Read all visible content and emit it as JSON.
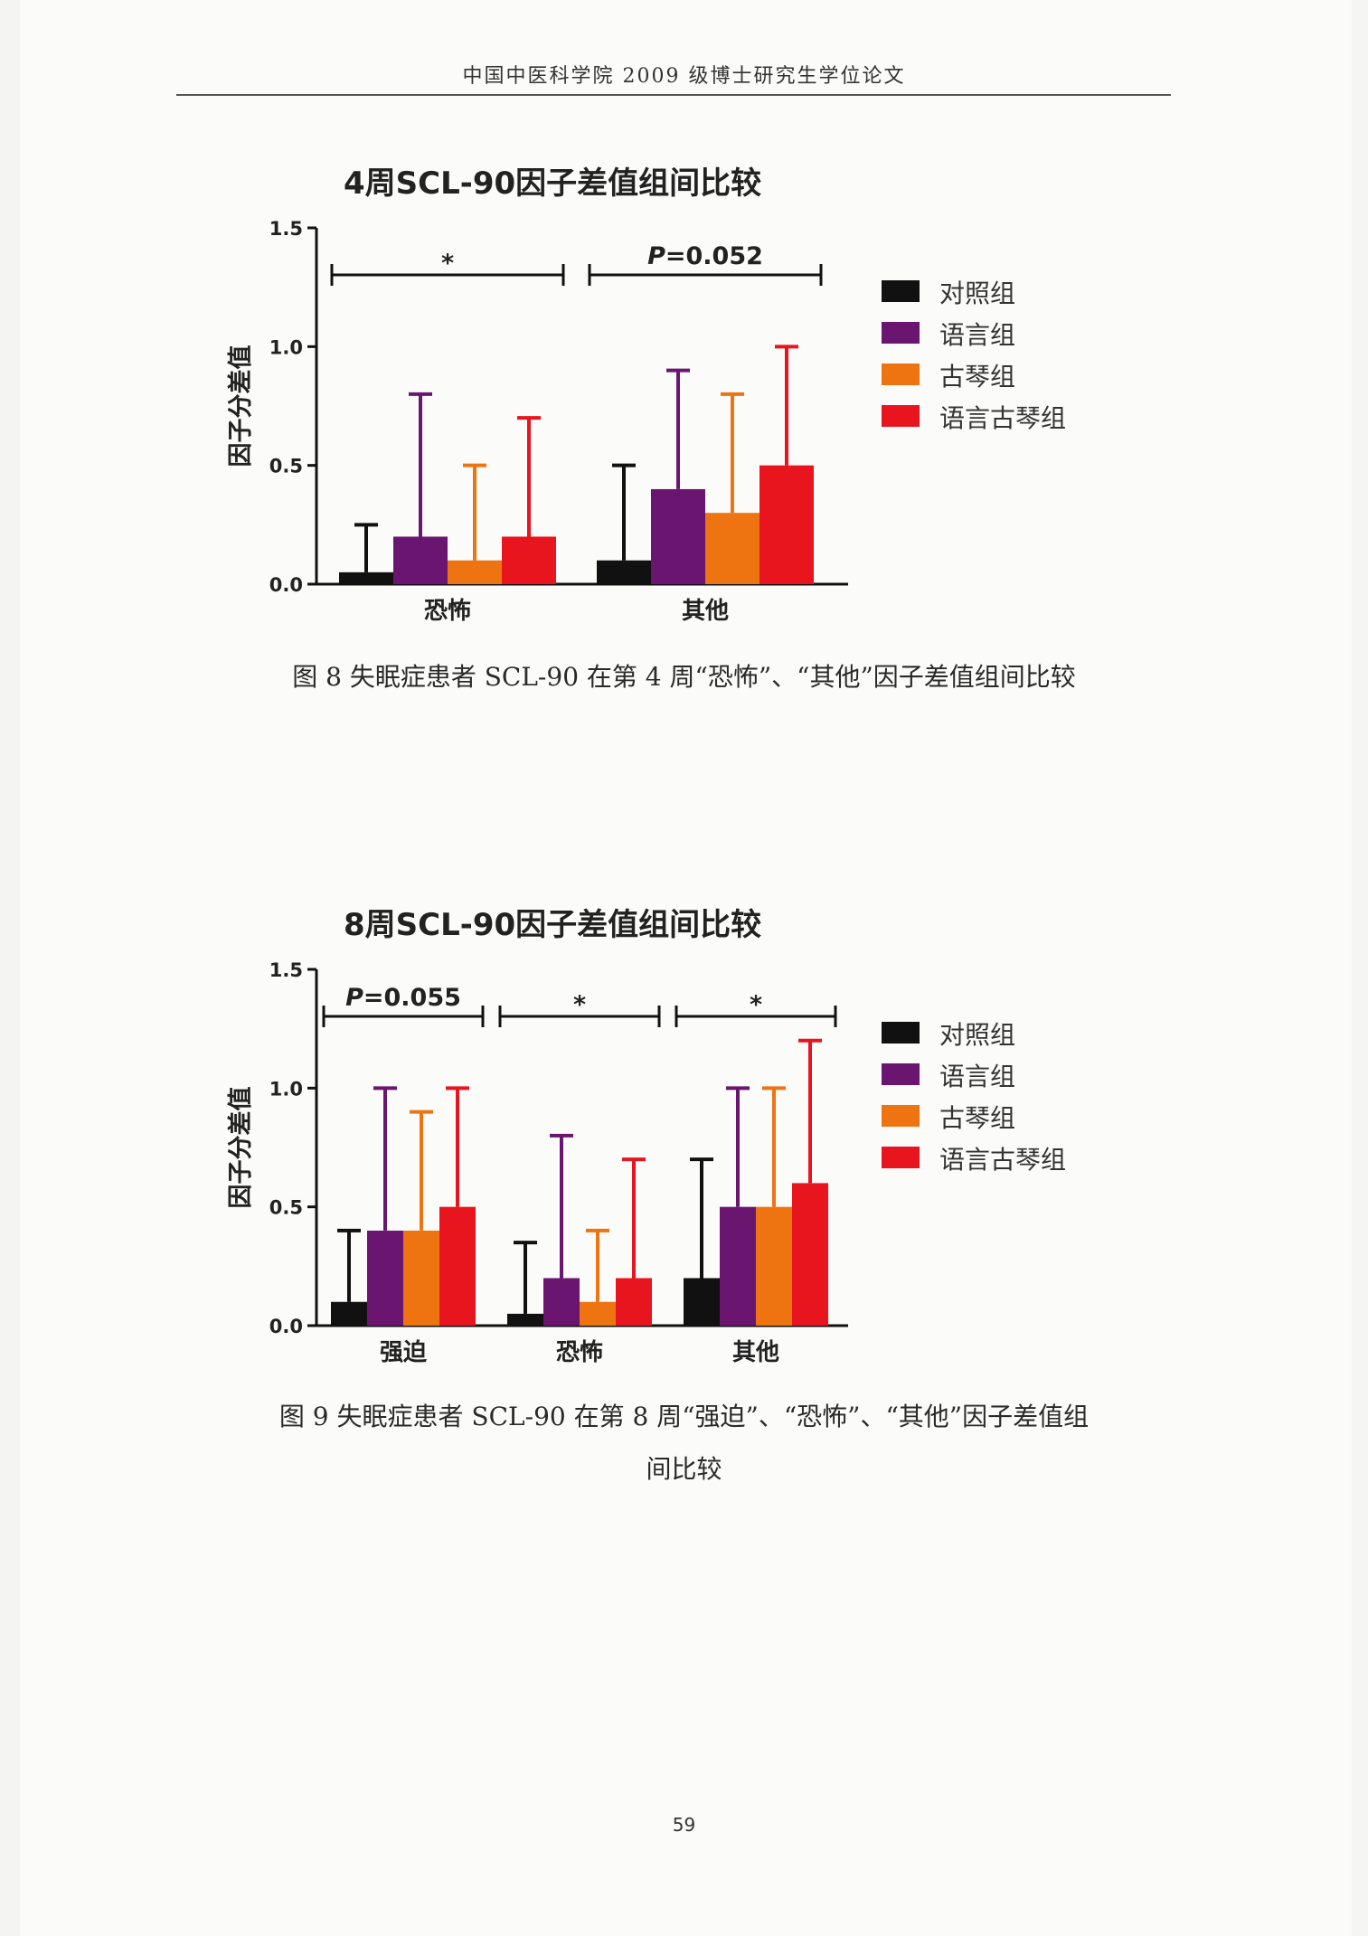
{
  "header": {
    "running_title": "中国中医科学院 2009 级博士研究生学位论文"
  },
  "colors": {
    "对照组": "#111111",
    "语言组": "#6a1670",
    "古琴组": "#ee7412",
    "语言古琴组": "#e8141e"
  },
  "chart_data": [
    {
      "type": "bar",
      "title": "4周SCL-90因子差值组间比较",
      "ylabel": "因子分差值",
      "ylim": [
        0,
        1.5
      ],
      "yticks": [
        "0.0",
        "0.5",
        "1.0",
        "1.5"
      ],
      "categories": [
        "恐怖",
        "其他"
      ],
      "series": [
        {
          "name": "对照组",
          "values": [
            0.05,
            0.1
          ],
          "error_upper": [
            0.25,
            0.5
          ]
        },
        {
          "name": "语言组",
          "values": [
            0.2,
            0.4
          ],
          "error_upper": [
            0.8,
            0.9
          ]
        },
        {
          "name": "古琴组",
          "values": [
            0.1,
            0.3
          ],
          "error_upper": [
            0.5,
            0.8
          ]
        },
        {
          "name": "语言古琴组",
          "values": [
            0.2,
            0.5
          ],
          "error_upper": [
            0.7,
            1.0
          ]
        }
      ],
      "significance": [
        {
          "category": "恐怖",
          "label": "*",
          "italic_p": false
        },
        {
          "category": "其他",
          "label": "P=0.052",
          "italic_p": true
        }
      ],
      "legend": "right"
    },
    {
      "type": "bar",
      "title": "8周SCL-90因子差值组间比较",
      "ylabel": "因子分差值",
      "ylim": [
        0,
        1.5
      ],
      "yticks": [
        "0.0",
        "0.5",
        "1.0",
        "1.5"
      ],
      "categories": [
        "强迫",
        "恐怖",
        "其他"
      ],
      "series": [
        {
          "name": "对照组",
          "values": [
            0.1,
            0.05,
            0.2
          ],
          "error_upper": [
            0.4,
            0.35,
            0.7
          ]
        },
        {
          "name": "语言组",
          "values": [
            0.4,
            0.2,
            0.5
          ],
          "error_upper": [
            1.0,
            0.8,
            1.0
          ]
        },
        {
          "name": "古琴组",
          "values": [
            0.4,
            0.1,
            0.5
          ],
          "error_upper": [
            0.9,
            0.4,
            1.0
          ]
        },
        {
          "name": "语言古琴组",
          "values": [
            0.5,
            0.2,
            0.6
          ],
          "error_upper": [
            1.0,
            0.7,
            1.2
          ]
        }
      ],
      "significance": [
        {
          "category": "强迫",
          "label": "P=0.055",
          "italic_p": true
        },
        {
          "category": "恐怖",
          "label": "*",
          "italic_p": false
        },
        {
          "category": "其他",
          "label": "*",
          "italic_p": false
        }
      ],
      "legend": "right"
    }
  ],
  "captions": {
    "fig8": "图 8  失眠症患者 SCL-90 在第 4 周“恐怖”、“其他”因子差值组间比较",
    "fig9_line1": "图 9  失眠症患者 SCL-90 在第 8 周“强迫”、“恐怖”、“其他”因子差值组",
    "fig9_line2": "间比较"
  },
  "page_number": "59"
}
